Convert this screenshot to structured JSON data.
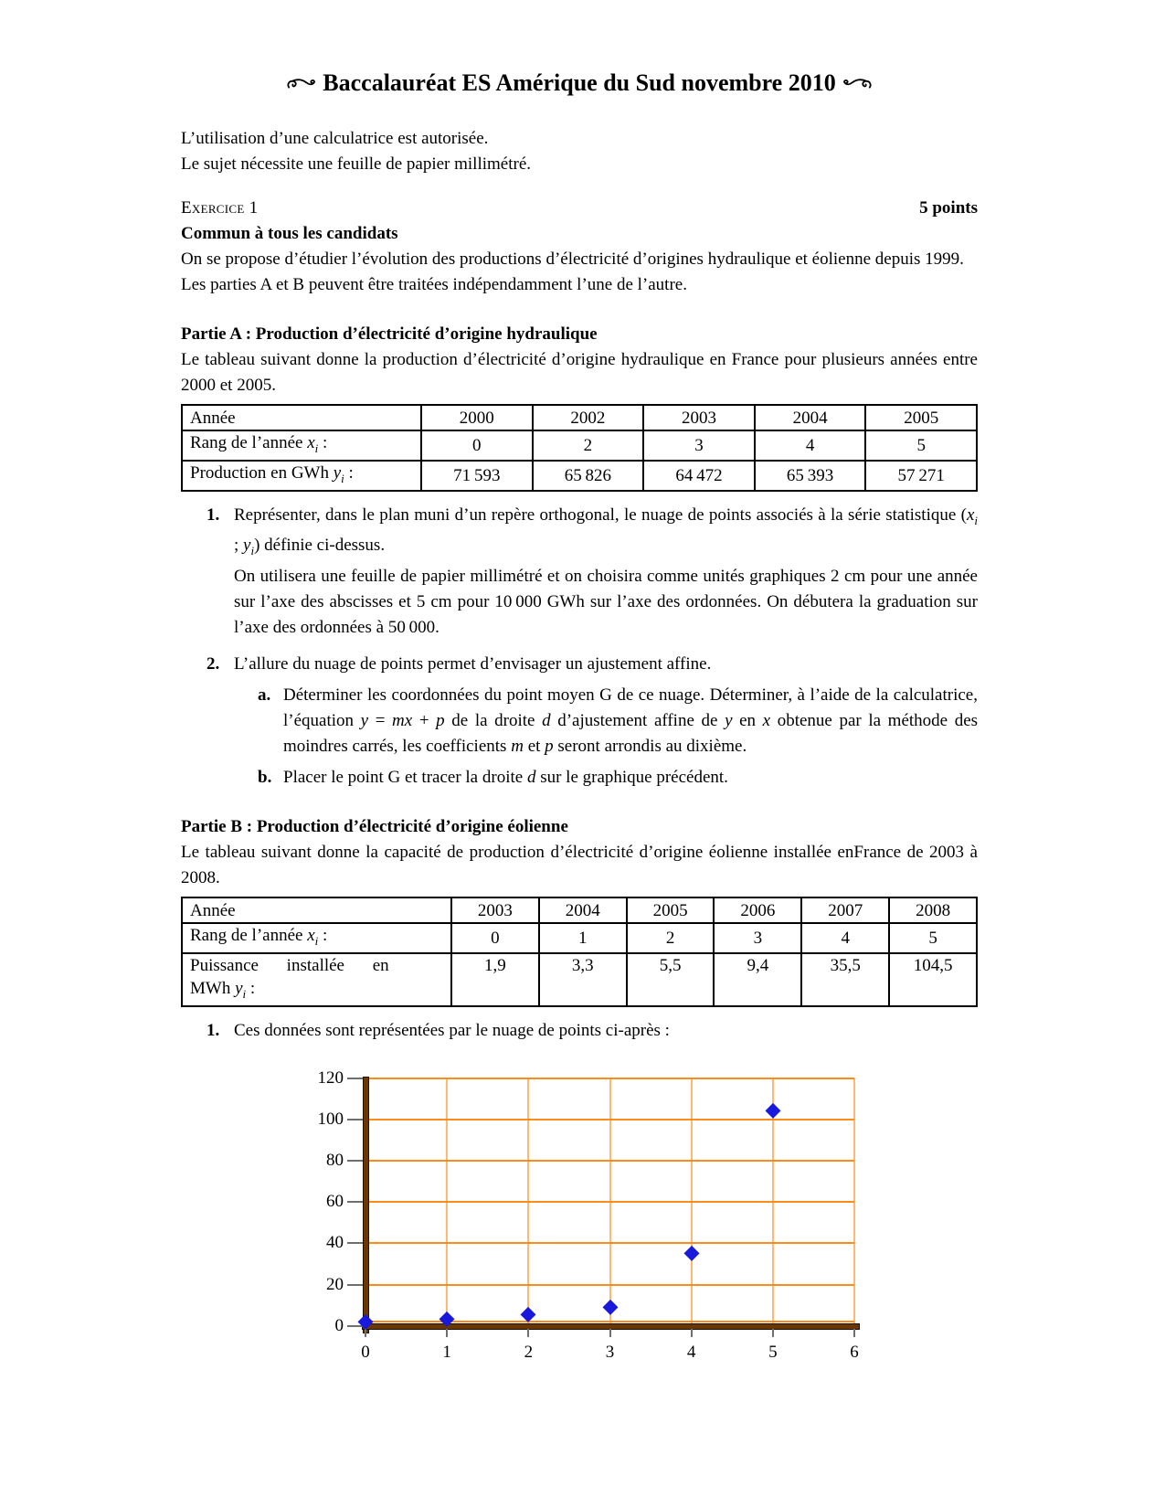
{
  "title": "Baccalauréat ES Amérique du Sud novembre 2010",
  "ornament": "swirl-ornament",
  "notices": [
    "L’utilisation d’une calculatrice est autorisée.",
    "Le sujet nécessite une feuille de papier millimétré."
  ],
  "exercise": {
    "label": "Exercice 1",
    "points": "5 points",
    "audience": "Commun à tous les candidats",
    "intro_p1": "On se propose d’étudier l’évolution des productions d’électricité d’origines hydraulique et éolienne depuis 1999.",
    "intro_p2": "Les parties A et B peuvent être traitées indépendamment l’une de l’autre."
  },
  "part_a": {
    "heading": "Partie A : Production d’électricité d’origine hydraulique",
    "intro": "Le tableau suivant donne la production d’électricité d’origine hydraulique en France pour plusieurs années entre 2000 et 2005.",
    "table": {
      "rows": [
        {
          "label_html": "Année",
          "values": [
            "2000",
            "2002",
            "2003",
            "2004",
            "2005"
          ]
        },
        {
          "label_html": "Rang de l’année <i>x<sub>i</sub></i> :",
          "values": [
            "0",
            "2",
            "3",
            "4",
            "5"
          ]
        },
        {
          "label_html": "Production en GWh <i>y<sub>i</sub></i> :",
          "values": [
            "71 593",
            "65 826",
            "64 472",
            "65 393",
            "57 271"
          ]
        }
      ]
    },
    "q1_num": "1.",
    "q1a_html": "Représenter, dans le plan muni d’un repère orthogonal, le nuage de points associés à la série statistique (<i>x<sub>i</sub></i> ; <i>y<sub>i</sub></i>) définie ci-dessus.",
    "q1b_html": "On utilisera une feuille de papier millimétré et on choisira comme unités graphiques 2 cm pour une année sur l’axe des abscisses et 5 cm pour 10 000 GWh sur l’axe des ordonnées. On débutera la graduation sur l’axe des ordonnées à 50 000.",
    "q2_num": "2.",
    "q2_html": "L’allure du nuage de points permet d’envisager un ajustement affine.",
    "q2a_num": "a.",
    "q2a_html": "Déterminer les coordonnées du point moyen G de ce nuage. Déterminer, à l’aide de la calculatrice, l’équation <i>y</i> = <i>mx</i> + <i>p</i> de la droite <i>d</i> d’ajustement affine de <i>y</i> en <i>x</i> obtenue par la méthode des moindres carrés, les coefficients <i>m</i> et <i>p</i> seront arrondis au dixième.",
    "q2b_num": "b.",
    "q2b_html": "Placer le point G et tracer la droite <i>d</i> sur le graphique précédent."
  },
  "part_b": {
    "heading": "Partie B : Production d’électricité d’origine éolienne",
    "intro": "Le tableau suivant donne la capacité de production d’électricité d’origine éolienne installée enFrance de 2003 à 2008.",
    "table": {
      "rows": [
        {
          "label_html": "Année",
          "values": [
            "2003",
            "2004",
            "2005",
            "2006",
            "2007",
            "2008"
          ]
        },
        {
          "label_html": "Rang de l’année <i>x<sub>i</sub></i> :",
          "values": [
            "0",
            "1",
            "2",
            "3",
            "4",
            "5"
          ]
        },
        {
          "label_html": "<span class=\"spread\">Puissance installée en</span><br>MWh <i>y<sub>i</sub></i> :",
          "values": [
            "1,9",
            "3,3",
            "5,5",
            "9,4",
            "35,5",
            "104,5"
          ],
          "tall": true
        }
      ]
    },
    "q1_num": "1.",
    "q1": "Ces données sont représentées par le nuage de points ci-après :"
  },
  "chart_data": {
    "type": "scatter",
    "series_name": "Puissance installée en MWh",
    "x": [
      0,
      1,
      2,
      3,
      4,
      5
    ],
    "y": [
      1.9,
      3.3,
      5.5,
      9.4,
      35.5,
      104.5
    ],
    "xlim": [
      0,
      6
    ],
    "ylim": [
      0,
      120
    ],
    "x_ticks": [
      0,
      1,
      2,
      3,
      4,
      5,
      6
    ],
    "y_ticks": [
      0,
      20,
      40,
      60,
      80,
      100,
      120
    ],
    "grid": true,
    "legend": "none",
    "title": "",
    "xlabel": "",
    "ylabel": "",
    "marker": "diamond",
    "colors": {
      "point": "#1919DC",
      "grid_h": "#FF8C1A",
      "grid_v": "#FFB873",
      "axis_fill": "#6B3600",
      "axis_edge": "#161006",
      "tick": "#6f6f6f"
    }
  }
}
